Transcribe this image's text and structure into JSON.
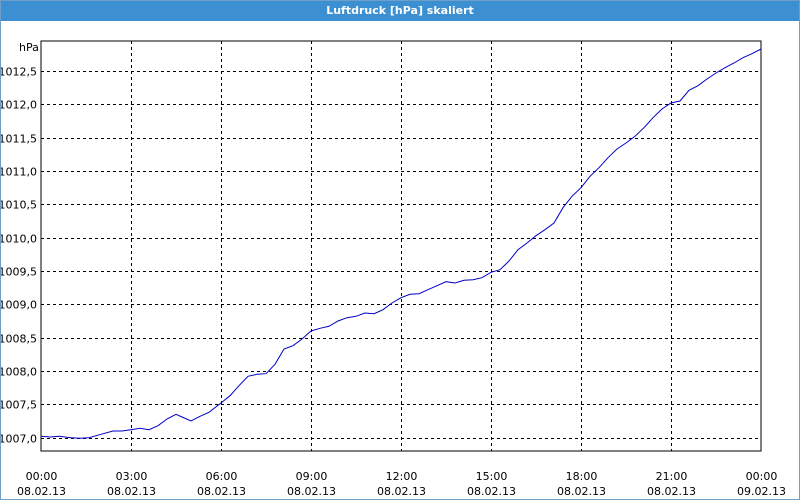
{
  "window": {
    "title": "Luftdruck [hPa] skaliert"
  },
  "colors": {
    "titlebar": "#3c8fd0",
    "series": "#0000c8",
    "grid": "#000000"
  },
  "chart_data": {
    "type": "line",
    "title": "Luftdruck [hPa] skaliert",
    "ylabel": "hPa",
    "xlabel": "",
    "grid": true,
    "xlim": [
      0,
      24
    ],
    "ylim": [
      1006.8,
      1012.95
    ],
    "y_ticks": [
      {
        "value": 1007.0,
        "label": "1007,0"
      },
      {
        "value": 1007.5,
        "label": "1007,5"
      },
      {
        "value": 1008.0,
        "label": "1008,0"
      },
      {
        "value": 1008.5,
        "label": "1008,5"
      },
      {
        "value": 1009.0,
        "label": "1009,0"
      },
      {
        "value": 1009.5,
        "label": "1009,5"
      },
      {
        "value": 1010.0,
        "label": "1010,0"
      },
      {
        "value": 1010.5,
        "label": "1010,5"
      },
      {
        "value": 1011.0,
        "label": "1011,0"
      },
      {
        "value": 1011.5,
        "label": "1011,5"
      },
      {
        "value": 1012.0,
        "label": "1012,0"
      },
      {
        "value": 1012.5,
        "label": "1012,5"
      }
    ],
    "x_ticks": [
      {
        "value": 0,
        "time": "00:00",
        "date": "08.02.13"
      },
      {
        "value": 3,
        "time": "03:00",
        "date": "08.02.13"
      },
      {
        "value": 6,
        "time": "06:00",
        "date": "08.02.13"
      },
      {
        "value": 9,
        "time": "09:00",
        "date": "08.02.13"
      },
      {
        "value": 12,
        "time": "12:00",
        "date": "08.02.13"
      },
      {
        "value": 15,
        "time": "15:00",
        "date": "08.02.13"
      },
      {
        "value": 18,
        "time": "18:00",
        "date": "08.02.13"
      },
      {
        "value": 21,
        "time": "21:00",
        "date": "08.02.13"
      },
      {
        "value": 24,
        "time": "00:00",
        "date": "09.02.13"
      }
    ],
    "series": [
      {
        "x": [
          0.0,
          0.3,
          0.6,
          1.0,
          1.3,
          1.6,
          2.0,
          2.4,
          2.7,
          3.0,
          3.3,
          3.6,
          3.9,
          4.2,
          4.5,
          4.7,
          5.0,
          5.3,
          5.6,
          6.0,
          6.3,
          6.6,
          6.9,
          7.2,
          7.5,
          7.8,
          8.1,
          8.4,
          8.7,
          9.0,
          9.3,
          9.6,
          9.9,
          10.2,
          10.5,
          10.8,
          11.1,
          11.4,
          11.7,
          12.0,
          12.3,
          12.6,
          12.9,
          13.2,
          13.5,
          13.8,
          14.1,
          14.4,
          14.7,
          15.0,
          15.3,
          15.6,
          15.9,
          16.2,
          16.5,
          16.8,
          17.1,
          17.4,
          17.7,
          18.0,
          18.3,
          18.6,
          18.9,
          19.2,
          19.5,
          19.8,
          20.1,
          20.4,
          20.7,
          21.0,
          21.3,
          21.6,
          21.9,
          22.2,
          22.5,
          22.8,
          23.1,
          23.4,
          23.7,
          24.0
        ],
        "y": [
          1007.02,
          1007.01,
          1007.02,
          1007.0,
          1006.99,
          1007.0,
          1007.05,
          1007.1,
          1007.1,
          1007.12,
          1007.14,
          1007.12,
          1007.18,
          1007.28,
          1007.35,
          1007.31,
          1007.25,
          1007.32,
          1007.38,
          1007.52,
          1007.63,
          1007.78,
          1007.92,
          1007.95,
          1007.96,
          1008.1,
          1008.33,
          1008.38,
          1008.48,
          1008.6,
          1008.64,
          1008.67,
          1008.75,
          1008.8,
          1008.82,
          1008.87,
          1008.86,
          1008.92,
          1009.02,
          1009.1,
          1009.15,
          1009.16,
          1009.22,
          1009.28,
          1009.34,
          1009.32,
          1009.36,
          1009.37,
          1009.4,
          1009.48,
          1009.52,
          1009.65,
          1009.82,
          1009.92,
          1010.03,
          1010.12,
          1010.22,
          1010.45,
          1010.62,
          1010.75,
          1010.92,
          1011.05,
          1011.2,
          1011.33,
          1011.42,
          1011.52,
          1011.65,
          1011.8,
          1011.93,
          1012.02,
          1012.05,
          1012.21,
          1012.28,
          1012.38,
          1012.47,
          1012.55,
          1012.62,
          1012.7,
          1012.76,
          1012.83
        ]
      }
    ]
  }
}
